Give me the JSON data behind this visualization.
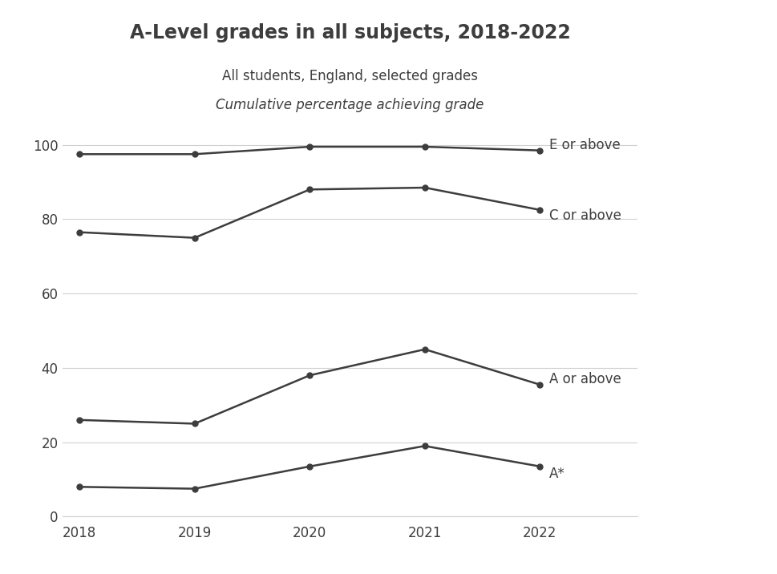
{
  "title": "A-Level grades in all subjects, 2018-2022",
  "subtitle1": "All students, England, selected grades",
  "subtitle2": "Cumulative percentage achieving grade",
  "years": [
    2018,
    2019,
    2020,
    2021,
    2022
  ],
  "series": {
    "E or above": [
      97.5,
      97.5,
      99.5,
      99.5,
      98.5
    ],
    "C or above": [
      76.5,
      75.0,
      88.0,
      88.5,
      82.5
    ],
    "A or above": [
      26.0,
      25.0,
      38.0,
      45.0,
      35.5
    ],
    "A*": [
      8.0,
      7.5,
      13.5,
      19.0,
      13.5
    ]
  },
  "line_color": "#3d3d3d",
  "marker": "o",
  "markersize": 5,
  "linewidth": 1.8,
  "background_color": "#ffffff",
  "grid_color": "#d0d0d0",
  "tick_color": "#3d3d3d",
  "title_fontsize": 17,
  "subtitle_fontsize": 12,
  "label_fontsize": 12,
  "tick_fontsize": 12,
  "ylim": [
    0,
    105
  ],
  "yticks": [
    0,
    20,
    40,
    60,
    80,
    100
  ],
  "label_y_offsets": {
    "E or above": 1.5,
    "C or above": -1.5,
    "A or above": 1.5,
    "A*": -2.0
  }
}
